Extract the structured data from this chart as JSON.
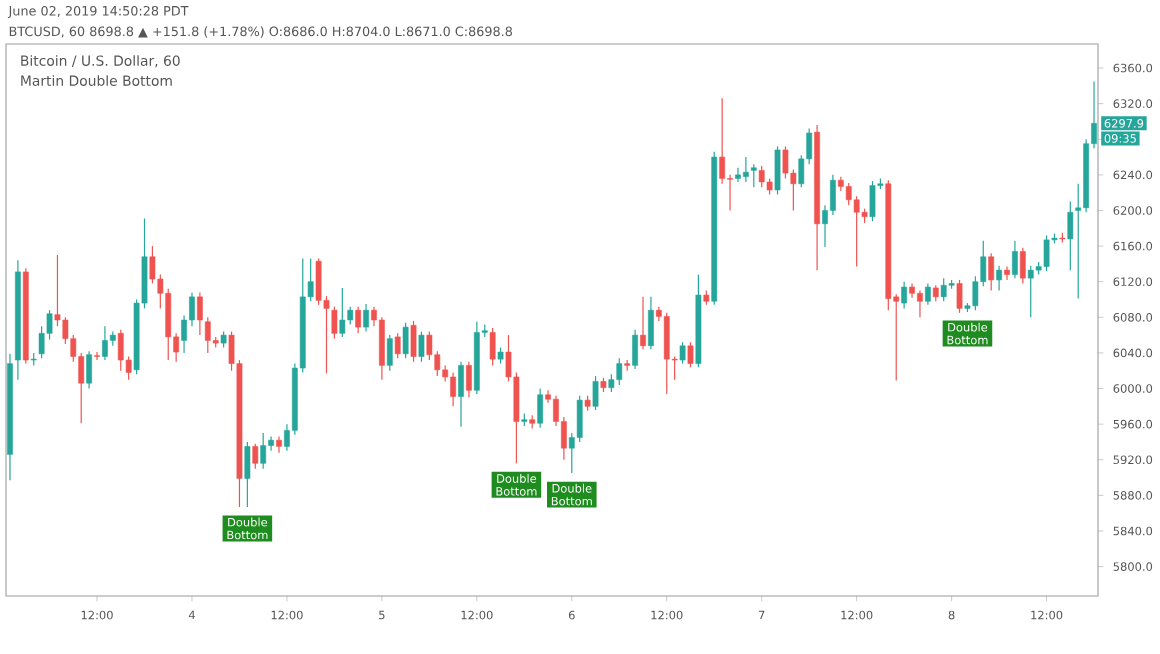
{
  "chart_data": {
    "type": "candlestick",
    "title": "Bitcoin / U.S. Dollar, 60",
    "subtitle": "Martin Double Bottom",
    "annotations": [
      "June 02, 2019 14:50:28 PDT",
      "BTCUSD, 60 8698.8 ▲ +151.8 (+1.78%) O:8686.0 H:8704.0 L:8671.0 C:8698.8",
      "6297.9",
      "09:35",
      {
        "text": "Double Bottom",
        "x": "2019-06-04T07:00",
        "y": 5867
      },
      {
        "text": "Double Bottom",
        "x": "2019-06-05T17:00",
        "y": 5916
      },
      {
        "text": "Double Bottom",
        "x": "2019-06-06T00:00",
        "y": 5905
      },
      {
        "text": "Double Bottom",
        "x": "2019-06-08T02:00",
        "y": 6086
      }
    ],
    "x": [
      "2019-06-03T01:00",
      "2019-06-03T02:00",
      "2019-06-03T03:00",
      "2019-06-03T04:00",
      "2019-06-03T05:00",
      "2019-06-03T06:00",
      "2019-06-03T07:00",
      "2019-06-03T08:00",
      "2019-06-03T09:00",
      "2019-06-03T10:00",
      "2019-06-03T11:00",
      "2019-06-03T12:00",
      "2019-06-03T13:00",
      "2019-06-03T14:00",
      "2019-06-03T15:00",
      "2019-06-03T16:00",
      "2019-06-03T17:00",
      "2019-06-03T18:00",
      "2019-06-03T19:00",
      "2019-06-03T20:00",
      "2019-06-03T21:00",
      "2019-06-03T22:00",
      "2019-06-03T23:00",
      "2019-06-04T00:00",
      "2019-06-04T01:00",
      "2019-06-04T02:00",
      "2019-06-04T03:00",
      "2019-06-04T04:00",
      "2019-06-04T05:00",
      "2019-06-04T06:00",
      "2019-06-04T07:00",
      "2019-06-04T08:00",
      "2019-06-04T09:00",
      "2019-06-04T10:00",
      "2019-06-04T11:00",
      "2019-06-04T12:00",
      "2019-06-04T13:00",
      "2019-06-04T14:00",
      "2019-06-04T15:00",
      "2019-06-04T16:00",
      "2019-06-04T17:00",
      "2019-06-04T18:00",
      "2019-06-04T19:00",
      "2019-06-04T20:00",
      "2019-06-04T21:00",
      "2019-06-04T22:00",
      "2019-06-04T23:00",
      "2019-06-05T00:00",
      "2019-06-05T01:00",
      "2019-06-05T02:00",
      "2019-06-05T03:00",
      "2019-06-05T04:00",
      "2019-06-05T05:00",
      "2019-06-05T06:00",
      "2019-06-05T07:00",
      "2019-06-05T08:00",
      "2019-06-05T09:00",
      "2019-06-05T10:00",
      "2019-06-05T11:00",
      "2019-06-05T12:00",
      "2019-06-05T13:00",
      "2019-06-05T14:00",
      "2019-06-05T15:00",
      "2019-06-05T16:00",
      "2019-06-05T17:00",
      "2019-06-05T18:00",
      "2019-06-05T19:00",
      "2019-06-05T20:00",
      "2019-06-05T21:00",
      "2019-06-05T22:00",
      "2019-06-05T23:00",
      "2019-06-06T00:00",
      "2019-06-06T01:00",
      "2019-06-06T02:00",
      "2019-06-06T03:00",
      "2019-06-06T04:00",
      "2019-06-06T05:00",
      "2019-06-06T06:00",
      "2019-06-06T07:00",
      "2019-06-06T08:00",
      "2019-06-06T09:00",
      "2019-06-06T10:00",
      "2019-06-06T11:00",
      "2019-06-06T12:00",
      "2019-06-06T13:00",
      "2019-06-06T14:00",
      "2019-06-06T15:00",
      "2019-06-06T16:00",
      "2019-06-06T17:00",
      "2019-06-06T18:00",
      "2019-06-06T19:00",
      "2019-06-06T20:00",
      "2019-06-06T21:00",
      "2019-06-06T22:00",
      "2019-06-06T23:00",
      "2019-06-07T00:00",
      "2019-06-07T01:00",
      "2019-06-07T02:00",
      "2019-06-07T03:00",
      "2019-06-07T04:00",
      "2019-06-07T05:00",
      "2019-06-07T06:00",
      "2019-06-07T07:00",
      "2019-06-07T08:00",
      "2019-06-07T09:00",
      "2019-06-07T10:00",
      "2019-06-07T11:00",
      "2019-06-07T12:00",
      "2019-06-07T13:00",
      "2019-06-07T14:00",
      "2019-06-07T15:00",
      "2019-06-07T16:00",
      "2019-06-07T17:00",
      "2019-06-07T18:00",
      "2019-06-07T19:00",
      "2019-06-07T20:00",
      "2019-06-07T21:00",
      "2019-06-07T22:00",
      "2019-06-07T23:00",
      "2019-06-08T00:00",
      "2019-06-08T01:00",
      "2019-06-08T02:00",
      "2019-06-08T03:00",
      "2019-06-08T04:00",
      "2019-06-08T05:00",
      "2019-06-08T06:00",
      "2019-06-08T07:00",
      "2019-06-08T08:00",
      "2019-06-08T09:00",
      "2019-06-08T10:00",
      "2019-06-08T11:00",
      "2019-06-08T12:00",
      "2019-06-08T13:00",
      "2019-06-08T14:00",
      "2019-06-08T15:00",
      "2019-06-08T16:00",
      "2019-06-08T17:00",
      "2019-06-08T18:00"
    ],
    "ohlc": [
      [
        5926,
        6039,
        5897,
        6028
      ],
      [
        6032,
        6144,
        6010,
        6131
      ],
      [
        6131,
        6135,
        6028,
        6032
      ],
      [
        6032,
        6040,
        6026,
        6033
      ],
      [
        6039,
        6070,
        6034,
        6062
      ],
      [
        6062,
        6088,
        6055,
        6084
      ],
      [
        6083,
        6150,
        6070,
        6077
      ],
      [
        6077,
        6080,
        6050,
        6056
      ],
      [
        6056,
        6060,
        6030,
        6036
      ],
      [
        6036,
        6040,
        5961,
        6006
      ],
      [
        6006,
        6042,
        6000,
        6038
      ],
      [
        6037,
        6041,
        6032,
        6036
      ],
      [
        6036,
        6070,
        6032,
        6054
      ],
      [
        6054,
        6064,
        6048,
        6060
      ],
      [
        6062,
        6066,
        6020,
        6032
      ],
      [
        6032,
        6036,
        6010,
        6018
      ],
      [
        6021,
        6100,
        6016,
        6096
      ],
      [
        6096,
        6191,
        6090,
        6148
      ],
      [
        6148,
        6160,
        6118,
        6123
      ],
      [
        6123,
        6128,
        6090,
        6107
      ],
      [
        6107,
        6112,
        6032,
        6058
      ],
      [
        6058,
        6062,
        6030,
        6041
      ],
      [
        6054,
        6082,
        6040,
        6077
      ],
      [
        6077,
        6108,
        6070,
        6103
      ],
      [
        6103,
        6108,
        6060,
        6077
      ],
      [
        6075,
        6080,
        6040,
        6054
      ],
      [
        6054,
        6058,
        6046,
        6051
      ],
      [
        6051,
        6064,
        6046,
        6060
      ],
      [
        6060,
        6064,
        6020,
        6028
      ],
      [
        6028,
        6032,
        5867,
        5899
      ],
      [
        5899,
        5940,
        5867,
        5935
      ],
      [
        5935,
        5938,
        5910,
        5916
      ],
      [
        5916,
        5950,
        5910,
        5936
      ],
      [
        5936,
        5946,
        5930,
        5942
      ],
      [
        5942,
        5946,
        5928,
        5935
      ],
      [
        5935,
        5960,
        5930,
        5953
      ],
      [
        5953,
        6028,
        5948,
        6023
      ],
      [
        6023,
        6146,
        6018,
        6103
      ],
      [
        6103,
        6146,
        6098,
        6120
      ],
      [
        6143,
        6146,
        6094,
        6099
      ],
      [
        6099,
        6104,
        6017,
        6090
      ],
      [
        6088,
        6092,
        6056,
        6062
      ],
      [
        6062,
        6113,
        6058,
        6077
      ],
      [
        6077,
        6092,
        6072,
        6088
      ],
      [
        6088,
        6092,
        6062,
        6069
      ],
      [
        6069,
        6095,
        6064,
        6088
      ],
      [
        6088,
        6092,
        6070,
        6077
      ],
      [
        6077,
        6080,
        6010,
        6026
      ],
      [
        6026,
        6060,
        6020,
        6056
      ],
      [
        6058,
        6062,
        6034,
        6039
      ],
      [
        6039,
        6074,
        6034,
        6069
      ],
      [
        6071,
        6076,
        6030,
        6036
      ],
      [
        6036,
        6064,
        6030,
        6060
      ],
      [
        6060,
        6064,
        6032,
        6038
      ],
      [
        6038,
        6042,
        6014,
        6021
      ],
      [
        6021,
        6026,
        6008,
        6013
      ],
      [
        6013,
        6018,
        5980,
        5991
      ],
      [
        5991,
        6030,
        5957,
        6026
      ],
      [
        6026,
        6030,
        5990,
        5998
      ],
      [
        5998,
        6075,
        5994,
        6063
      ],
      [
        6063,
        6072,
        6058,
        6065
      ],
      [
        6063,
        6068,
        6026,
        6033
      ],
      [
        6033,
        6046,
        6028,
        6041
      ],
      [
        6041,
        6060,
        6008,
        6013
      ],
      [
        6013,
        6018,
        5916,
        5963
      ],
      [
        5963,
        5972,
        5958,
        5965
      ],
      [
        5965,
        5970,
        5955,
        5961
      ],
      [
        5961,
        6000,
        5956,
        5993
      ],
      [
        5993,
        5998,
        5984,
        5988
      ],
      [
        5988,
        5992,
        5958,
        5963
      ],
      [
        5963,
        5968,
        5920,
        5933
      ],
      [
        5933,
        5950,
        5905,
        5945
      ],
      [
        5945,
        5992,
        5940,
        5987
      ],
      [
        5987,
        5992,
        5975,
        5980
      ],
      [
        5980,
        6014,
        5976,
        6008
      ],
      [
        6008,
        6012,
        5996,
        6001
      ],
      [
        6001,
        6016,
        5996,
        6010
      ],
      [
        6010,
        6034,
        6004,
        6028
      ],
      [
        6028,
        6032,
        6020,
        6026
      ],
      [
        6026,
        6066,
        6022,
        6060
      ],
      [
        6060,
        6103,
        6044,
        6048
      ],
      [
        6048,
        6103,
        6044,
        6088
      ],
      [
        6088,
        6092,
        6076,
        6081
      ],
      [
        6081,
        6085,
        5994,
        6033
      ],
      [
        6033,
        6036,
        6010,
        6032
      ],
      [
        6032,
        6052,
        6028,
        6048
      ],
      [
        6048,
        6052,
        6024,
        6028
      ],
      [
        6028,
        6128,
        6024,
        6105
      ],
      [
        6105,
        6110,
        6094,
        6098
      ],
      [
        6098,
        6266,
        6094,
        6260
      ],
      [
        6260,
        6326,
        6230,
        6236
      ],
      [
        6236,
        6240,
        6200,
        6235
      ],
      [
        6236,
        6248,
        6232,
        6240
      ],
      [
        6238,
        6260,
        6232,
        6243
      ],
      [
        6245,
        6252,
        6226,
        6248
      ],
      [
        6245,
        6250,
        6226,
        6232
      ],
      [
        6232,
        6236,
        6218,
        6223
      ],
      [
        6223,
        6272,
        6218,
        6268
      ],
      [
        6268,
        6272,
        6236,
        6242
      ],
      [
        6242,
        6246,
        6200,
        6230
      ],
      [
        6230,
        6262,
        6226,
        6258
      ],
      [
        6258,
        6292,
        6252,
        6287
      ],
      [
        6288,
        6296,
        6133,
        6185
      ],
      [
        6185,
        6206,
        6159,
        6200
      ],
      [
        6200,
        6240,
        6195,
        6234
      ],
      [
        6234,
        6238,
        6222,
        6227
      ],
      [
        6227,
        6231,
        6206,
        6212
      ],
      [
        6212,
        6216,
        6137,
        6198
      ],
      [
        6198,
        6202,
        6186,
        6193
      ],
      [
        6193,
        6233,
        6188,
        6228
      ],
      [
        6228,
        6236,
        6224,
        6230
      ],
      [
        6230,
        6234,
        6088,
        6101
      ],
      [
        6103,
        6106,
        6009,
        6098
      ],
      [
        6096,
        6120,
        6090,
        6114
      ],
      [
        6114,
        6118,
        6102,
        6107
      ],
      [
        6107,
        6110,
        6080,
        6098
      ],
      [
        6098,
        6118,
        6094,
        6114
      ],
      [
        6113,
        6116,
        6098,
        6103
      ],
      [
        6103,
        6124,
        6098,
        6116
      ],
      [
        6116,
        6122,
        6112,
        6118
      ],
      [
        6118,
        6122,
        6085,
        6090
      ],
      [
        6090,
        6096,
        6086,
        6093
      ],
      [
        6093,
        6126,
        6088,
        6120
      ],
      [
        6120,
        6166,
        6115,
        6148
      ],
      [
        6148,
        6152,
        6110,
        6122
      ],
      [
        6122,
        6138,
        6110,
        6133
      ],
      [
        6133,
        6137,
        6122,
        6128
      ],
      [
        6128,
        6166,
        6124,
        6154
      ],
      [
        6154,
        6158,
        6118,
        6124
      ],
      [
        6124,
        6138,
        6080,
        6133
      ],
      [
        6133,
        6142,
        6128,
        6137
      ],
      [
        6137,
        6172,
        6132,
        6167
      ],
      [
        6167,
        6174,
        6163,
        6169
      ],
      [
        6169,
        6175,
        6164,
        6168
      ],
      [
        6168,
        6210,
        6133,
        6198
      ],
      [
        6200,
        6230,
        6101,
        6203
      ],
      [
        6203,
        6280,
        6198,
        6275
      ],
      [
        6275,
        6345,
        6270,
        6297.9
      ]
    ],
    "colors": [
      "#26a69a",
      "#26a69a",
      "#ef5350",
      "#26a69a",
      "#26a69a",
      "#26a69a",
      "#ef5350",
      "#ef5350",
      "#ef5350",
      "#ef5350",
      "#26a69a",
      "#ef5350",
      "#26a69a",
      "#26a69a",
      "#ef5350",
      "#ef5350",
      "#26a69a",
      "#26a69a",
      "#ef5350",
      "#ef5350",
      "#ef5350",
      "#ef5350",
      "#26a69a",
      "#26a69a",
      "#ef5350",
      "#ef5350",
      "#ef5350",
      "#26a69a",
      "#ef5350",
      "#ef5350",
      "#26a69a",
      "#ef5350",
      "#26a69a",
      "#26a69a",
      "#ef5350",
      "#26a69a",
      "#26a69a",
      "#26a69a",
      "#26a69a",
      "#ef5350",
      "#ef5350",
      "#ef5350",
      "#26a69a",
      "#26a69a",
      "#ef5350",
      "#26a69a",
      "#ef5350",
      "#ef5350",
      "#26a69a",
      "#ef5350",
      "#26a69a",
      "#ef5350",
      "#26a69a",
      "#ef5350",
      "#ef5350",
      "#ef5350",
      "#ef5350",
      "#26a69a",
      "#ef5350",
      "#26a69a",
      "#26a69a",
      "#ef5350",
      "#26a69a",
      "#ef5350",
      "#ef5350",
      "#26a69a",
      "#ef5350",
      "#26a69a",
      "#ef5350",
      "#ef5350",
      "#ef5350",
      "#26a69a",
      "#26a69a",
      "#ef5350",
      "#26a69a",
      "#ef5350",
      "#26a69a",
      "#26a69a",
      "#ef5350",
      "#26a69a",
      "#ef5350",
      "#26a69a",
      "#ef5350",
      "#ef5350",
      "#ef5350",
      "#26a69a",
      "#ef5350",
      "#26a69a",
      "#ef5350",
      "#26a69a",
      "#ef5350",
      "#ef5350",
      "#26a69a",
      "#26a69a",
      "#26a69a",
      "#ef5350",
      "#ef5350",
      "#26a69a",
      "#ef5350",
      "#ef5350",
      "#26a69a",
      "#26a69a",
      "#ef5350",
      "#26a69a",
      "#26a69a",
      "#ef5350",
      "#ef5350",
      "#ef5350",
      "#ef5350",
      "#26a69a",
      "#26a69a",
      "#ef5350",
      "#ef5350",
      "#26a69a",
      "#ef5350",
      "#ef5350",
      "#26a69a",
      "#ef5350",
      "#26a69a",
      "#26a69a",
      "#ef5350",
      "#26a69a",
      "#26a69a",
      "#26a69a",
      "#ef5350",
      "#26a69a",
      "#ef5350",
      "#26a69a",
      "#ef5350",
      "#26a69a",
      "#26a69a",
      "#26a69a",
      "#26a69a",
      "#ef5350",
      "#26a69a",
      "#26a69a",
      "#26a69a",
      "#26a69a"
    ],
    "xlim": [
      "2019-06-03T00:30",
      "2019-06-08T18:30"
    ],
    "ylim": [
      5767,
      6387
    ],
    "xticks": [
      {
        "value": "2019-06-03T12:00",
        "label": "12:00"
      },
      {
        "value": "2019-06-04T00:00",
        "label": "4"
      },
      {
        "value": "2019-06-04T12:00",
        "label": "12:00"
      },
      {
        "value": "2019-06-05T00:00",
        "label": "5"
      },
      {
        "value": "2019-06-05T12:00",
        "label": "12:00"
      },
      {
        "value": "2019-06-06T00:00",
        "label": "6"
      },
      {
        "value": "2019-06-06T12:00",
        "label": "12:00"
      },
      {
        "value": "2019-06-07T00:00",
        "label": "7"
      },
      {
        "value": "2019-06-07T12:00",
        "label": "12:00"
      },
      {
        "value": "2019-06-08T00:00",
        "label": "8"
      },
      {
        "value": "2019-06-08T12:00",
        "label": "12:00"
      }
    ],
    "yticks": [
      {
        "value": 5800,
        "label": "5800.0"
      },
      {
        "value": 5840,
        "label": "5840.0"
      },
      {
        "value": 5880,
        "label": "5880.0"
      },
      {
        "value": 5920,
        "label": "5920.0"
      },
      {
        "value": 5960,
        "label": "5960.0"
      },
      {
        "value": 6000,
        "label": "6000.0"
      },
      {
        "value": 6040,
        "label": "6040.0"
      },
      {
        "value": 6080,
        "label": "6080.0"
      },
      {
        "value": 6120,
        "label": "6120.0"
      },
      {
        "value": 6160,
        "label": "6160.0"
      },
      {
        "value": 6200,
        "label": "6200.0"
      },
      {
        "value": 6240,
        "label": "6240.0"
      },
      {
        "value": 6280,
        "label": null
      },
      {
        "value": 6320,
        "label": "6320.0"
      },
      {
        "value": 6360,
        "label": "6360.0"
      }
    ]
  }
}
